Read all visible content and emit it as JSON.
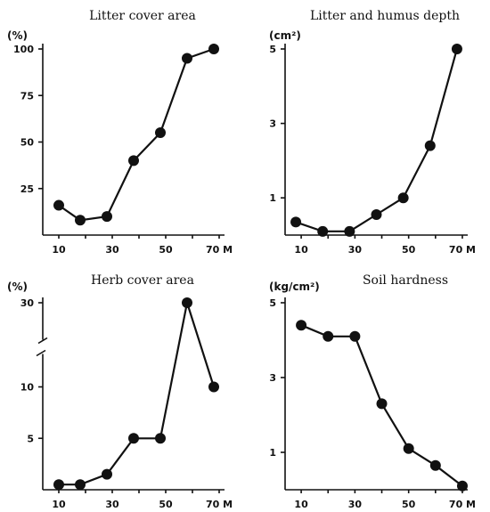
{
  "chart_data": [
    {
      "type": "line",
      "title": "Litter cover area",
      "ylabel": "(%)",
      "x": [
        10,
        18,
        28,
        38,
        48,
        58,
        68
      ],
      "values": [
        16,
        8,
        10,
        40,
        55,
        95,
        100
      ],
      "ylim": [
        0,
        100
      ],
      "yticks": [
        "25",
        "50",
        "75",
        "100"
      ],
      "xticks": [
        "10",
        "30",
        "50",
        "70 M"
      ]
    },
    {
      "type": "line",
      "title": "Litter and humus depth",
      "ylabel": "(cm²)",
      "x": [
        8,
        18,
        28,
        38,
        48,
        58,
        68
      ],
      "values": [
        0.35,
        0.1,
        0.1,
        0.55,
        1.0,
        2.4,
        5.0
      ],
      "ylim": [
        0,
        5
      ],
      "yticks": [
        "1",
        "3",
        "5"
      ],
      "xticks": [
        "10",
        "30",
        "50",
        "70 M"
      ]
    },
    {
      "type": "line",
      "title": "Herb cover area",
      "ylabel": "(%)",
      "x": [
        10,
        18,
        28,
        38,
        48,
        58,
        68
      ],
      "values": [
        0.5,
        0.5,
        1.5,
        5.0,
        5.0,
        30,
        10
      ],
      "ylim": [
        0,
        30
      ],
      "yticks": [
        "5",
        "10",
        "30"
      ],
      "xticks": [
        "10",
        "30",
        "50",
        "70 M"
      ]
    },
    {
      "type": "line",
      "title": "Soil hardness",
      "ylabel": "(kg/cm²)",
      "x": [
        10,
        20,
        30,
        40,
        50,
        60,
        70
      ],
      "values": [
        4.4,
        4.1,
        4.1,
        2.3,
        1.1,
        0.65,
        0.1
      ],
      "ylim": [
        0,
        5
      ],
      "yticks": [
        "1",
        "3",
        "5"
      ],
      "xticks": [
        "10",
        "30",
        "50",
        "70 M"
      ]
    }
  ]
}
